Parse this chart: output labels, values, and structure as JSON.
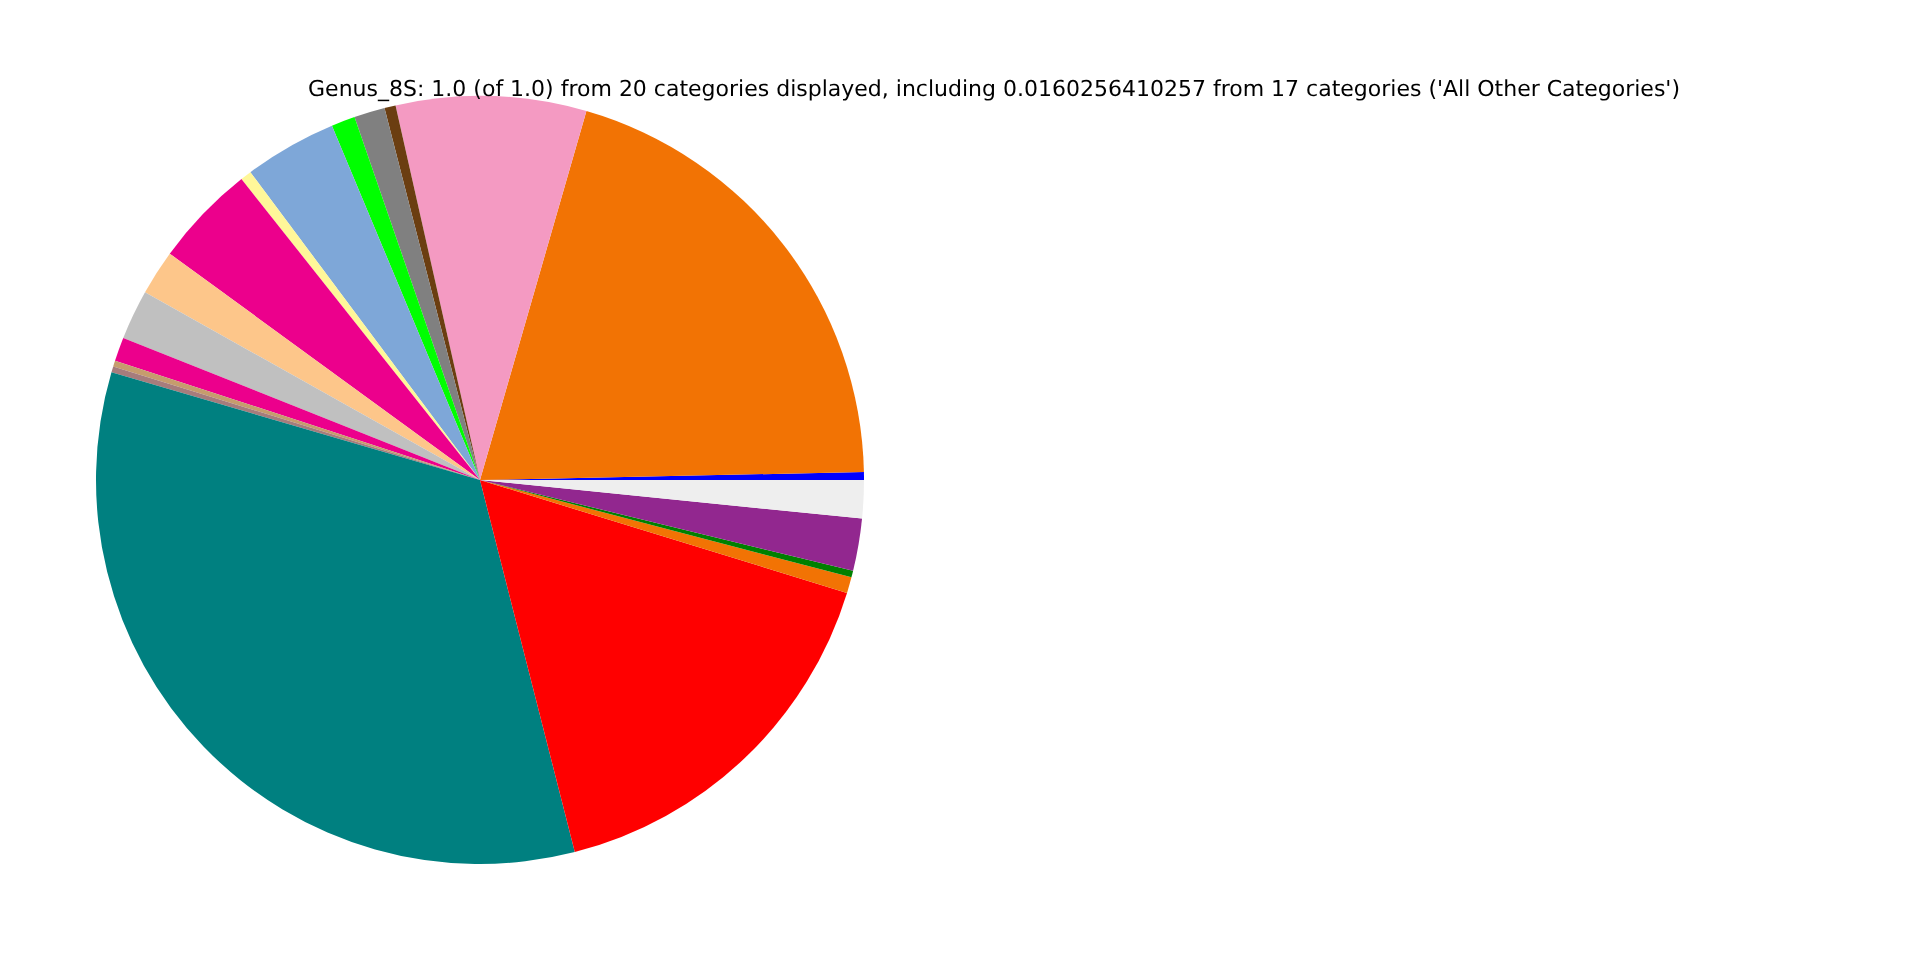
{
  "chart_data": {
    "type": "pie",
    "title": "Genus_8S: 1.0 (of 1.0) from 20 categories displayed, including 0.0160256410257 from 17 categories ('All Other Categories')",
    "categories": [
      null,
      null,
      null,
      null,
      null,
      null,
      null,
      null,
      null,
      null,
      null,
      null,
      null,
      null,
      null,
      null,
      null,
      null,
      null,
      null
    ],
    "values": [
      0.33,
      20.2,
      8.0,
      0.47,
      1.3,
      1.0,
      3.9,
      0.47,
      4.3,
      1.9,
      2.1,
      1.0,
      0.25,
      0.25,
      33.5,
      16.28,
      0.67,
      0.28,
      2.2,
      1.6
    ],
    "colors": [
      "#0000ff",
      "#f27304",
      "#f49ac2",
      "#6b3e11",
      "#808080",
      "#00ff00",
      "#7ea7d8",
      "#fff799",
      "#ec008c",
      "#fdc68a",
      "#c0c0c0",
      "#ec008c",
      "#c69c6d",
      "#a67c7c",
      "#008080",
      "#ff0000",
      "#f27304",
      "#008000",
      "#92278f",
      "#eeeeee"
    ]
  }
}
